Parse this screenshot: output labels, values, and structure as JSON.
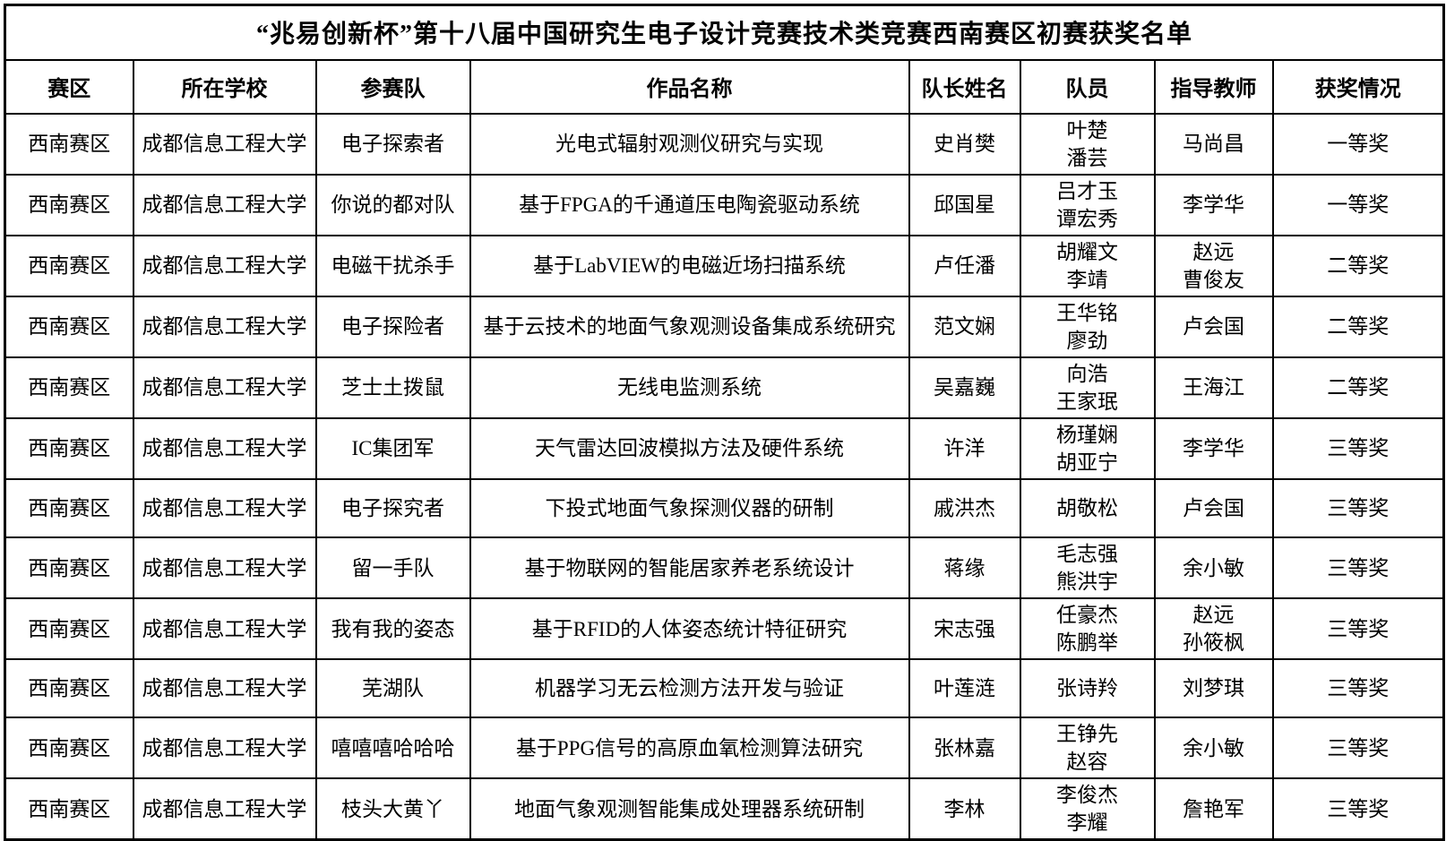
{
  "page": {
    "title": "“兆易创新杯”第十八届中国研究生电子设计竞赛技术类竞赛西南赛区初赛获奖名单"
  },
  "colors": {
    "border": "#000000",
    "background": "#ffffff",
    "text": "#000000"
  },
  "table": {
    "columns": [
      {
        "key": "region",
        "label": "赛区"
      },
      {
        "key": "school",
        "label": "所在学校"
      },
      {
        "key": "team",
        "label": "参赛队"
      },
      {
        "key": "work",
        "label": "作品名称"
      },
      {
        "key": "captain",
        "label": "队长姓名"
      },
      {
        "key": "members",
        "label": "队员"
      },
      {
        "key": "advisor",
        "label": "指导教师"
      },
      {
        "key": "award",
        "label": "获奖情况"
      }
    ],
    "rows": [
      {
        "region": "西南赛区",
        "school": "成都信息工程大学",
        "team": "电子探索者",
        "work": "光电式辐射观测仪研究与实现",
        "captain": "史肖樊",
        "members": "叶楚\n潘芸",
        "advisor": "马尚昌",
        "award": "一等奖"
      },
      {
        "region": "西南赛区",
        "school": "成都信息工程大学",
        "team": "你说的都对队",
        "work": "基于FPGA的千通道压电陶瓷驱动系统",
        "captain": "邱国星",
        "members": "吕才玉\n谭宏秀",
        "advisor": "李学华",
        "award": "一等奖"
      },
      {
        "region": "西南赛区",
        "school": "成都信息工程大学",
        "team": "电磁干扰杀手",
        "work": "基于LabVIEW的电磁近场扫描系统",
        "captain": "卢任潘",
        "members": "胡耀文\n李靖",
        "advisor": "赵远\n曹俊友",
        "award": "二等奖"
      },
      {
        "region": "西南赛区",
        "school": "成都信息工程大学",
        "team": "电子探险者",
        "work": "基于云技术的地面气象观测设备集成系统研究",
        "captain": "范文娴",
        "members": "王华铭\n廖劲",
        "advisor": "卢会国",
        "award": "二等奖"
      },
      {
        "region": "西南赛区",
        "school": "成都信息工程大学",
        "team": "芝士土拨鼠",
        "work": "无线电监测系统",
        "captain": "吴嘉巍",
        "members": "向浩\n王家珉",
        "advisor": "王海江",
        "award": "二等奖"
      },
      {
        "region": "西南赛区",
        "school": "成都信息工程大学",
        "team": "IC集团军",
        "work": "天气雷达回波模拟方法及硬件系统",
        "captain": "许洋",
        "members": "杨瑾娴\n胡亚宁",
        "advisor": "李学华",
        "award": "三等奖"
      },
      {
        "region": "西南赛区",
        "school": "成都信息工程大学",
        "team": "电子探究者",
        "work": "下投式地面气象探测仪器的研制",
        "captain": "戚洪杰",
        "members": "胡敬松",
        "advisor": "卢会国",
        "award": "三等奖"
      },
      {
        "region": "西南赛区",
        "school": "成都信息工程大学",
        "team": "留一手队",
        "work": "基于物联网的智能居家养老系统设计",
        "captain": "蒋缘",
        "members": "毛志强\n熊洪宇",
        "advisor": "余小敏",
        "award": "三等奖"
      },
      {
        "region": "西南赛区",
        "school": "成都信息工程大学",
        "team": "我有我的姿态",
        "work": "基于RFID的人体姿态统计特征研究",
        "captain": "宋志强",
        "members": "任豪杰\n陈鹏举",
        "advisor": "赵远\n孙筱枫",
        "award": "三等奖"
      },
      {
        "region": "西南赛区",
        "school": "成都信息工程大学",
        "team": "芜湖队",
        "work": "机器学习无云检测方法开发与验证",
        "captain": "叶莲涟",
        "members": "张诗羚",
        "advisor": "刘梦琪",
        "award": "三等奖"
      },
      {
        "region": "西南赛区",
        "school": "成都信息工程大学",
        "team": "嘻嘻嘻哈哈哈",
        "work": "基于PPG信号的高原血氧检测算法研究",
        "captain": "张林嘉",
        "members": "王铮先\n赵容",
        "advisor": "余小敏",
        "award": "三等奖"
      },
      {
        "region": "西南赛区",
        "school": "成都信息工程大学",
        "team": "枝头大黄丫",
        "work": "地面气象观测智能集成处理器系统研制",
        "captain": "李林",
        "members": "李俊杰\n李耀",
        "advisor": "詹艳军",
        "award": "三等奖"
      }
    ]
  }
}
